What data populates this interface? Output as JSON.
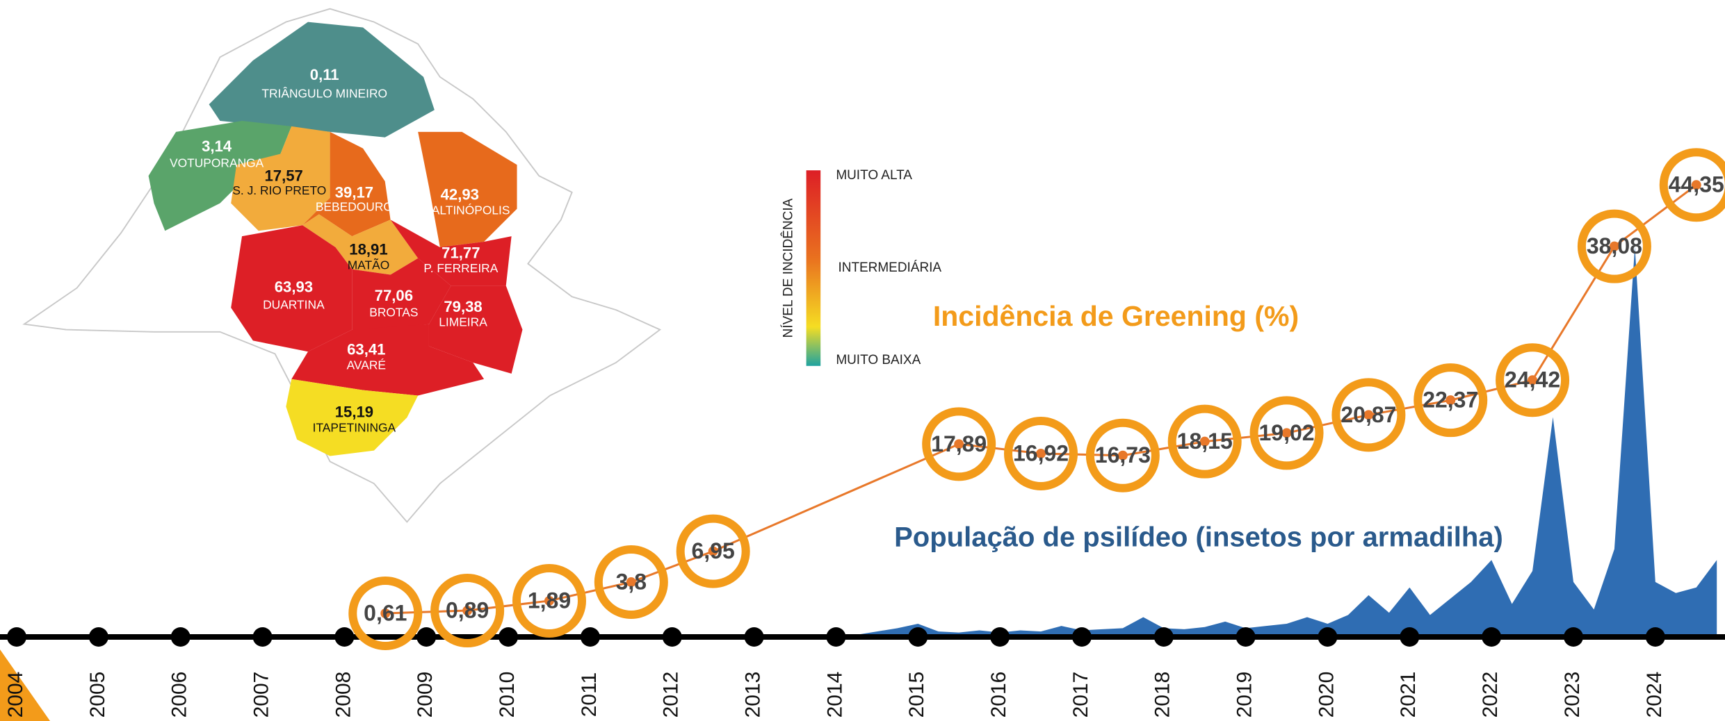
{
  "map": {
    "regions": [
      {
        "value": "0,11",
        "name": "TRIÂNGULO MINEIRO"
      },
      {
        "value": "3,14",
        "name": "VOTUPORANGA"
      },
      {
        "value": "17,57",
        "name": "S. J. RIO PRETO"
      },
      {
        "value": "39,17",
        "name": "BEBEDOURO"
      },
      {
        "value": "42,93",
        "name": "ALTINÓPOLIS"
      },
      {
        "value": "18,91",
        "name": "MATÃO"
      },
      {
        "value": "71,77",
        "name": "P. FERREIRA"
      },
      {
        "value": "63,93",
        "name": "DUARTINA"
      },
      {
        "value": "77,06",
        "name": "BROTAS"
      },
      {
        "value": "79,38",
        "name": "LIMEIRA"
      },
      {
        "value": "63,41",
        "name": "AVARÉ"
      },
      {
        "value": "15,19",
        "name": "ITAPETININGA"
      }
    ],
    "legend": {
      "title": "NÍVEL DE INCIDÊNCIA",
      "high": "MUITO ALTA",
      "mid": "INTERMEDIÁRIA",
      "low": "MUITO BAIXA"
    }
  },
  "chart_data": [
    {
      "type": "line",
      "title": "Incidência de Greening (%)",
      "x": [
        2008.5,
        2009.5,
        2010.5,
        2011.5,
        2012.5,
        2015.5,
        2016.5,
        2017.5,
        2018.5,
        2019.5,
        2020.5,
        2021.5,
        2022.5,
        2023.5,
        2024.5
      ],
      "values": [
        0.61,
        0.89,
        1.89,
        3.8,
        6.95,
        17.89,
        16.92,
        16.73,
        18.15,
        19.02,
        20.87,
        22.37,
        24.42,
        38.08,
        44.35
      ],
      "value_labels": [
        "0,61",
        "0,89",
        "1,89",
        "3,8",
        "6,95",
        "17,89",
        "16,92",
        "16,73",
        "18,15",
        "19,02",
        "20,87",
        "22,37",
        "24,42",
        "38,08",
        "44,35"
      ],
      "color": "#e8782a",
      "marker_color": "#f39b1a",
      "xlim": [
        2004,
        2024.85
      ],
      "ylim": [
        0,
        50
      ],
      "xticks": [
        2004,
        2005,
        2006,
        2007,
        2008,
        2009,
        2010,
        2011,
        2012,
        2013,
        2014,
        2015,
        2016,
        2017,
        2018,
        2019,
        2020,
        2021,
        2022,
        2023,
        2024
      ]
    },
    {
      "type": "area",
      "title": "População de psilídeo (insetos por armadilha)",
      "x": [
        2014,
        2014.25,
        2014.5,
        2014.75,
        2015,
        2015.25,
        2015.5,
        2015.75,
        2016,
        2016.25,
        2016.5,
        2016.75,
        2017,
        2017.25,
        2017.5,
        2017.75,
        2018,
        2018.25,
        2018.5,
        2018.75,
        2019,
        2019.25,
        2019.5,
        2019.75,
        2020,
        2020.25,
        2020.5,
        2020.75,
        2021,
        2021.25,
        2021.5,
        2021.75,
        2022,
        2022.25,
        2022.5,
        2022.75,
        2023,
        2023.25,
        2023.5,
        2023.75,
        2024,
        2024.25,
        2024.5,
        2024.75
      ],
      "values": [
        0,
        2,
        5,
        8,
        12,
        5,
        4,
        6,
        4,
        6,
        5,
        10,
        6,
        7,
        8,
        18,
        8,
        7,
        9,
        14,
        8,
        10,
        12,
        18,
        12,
        20,
        38,
        22,
        45,
        20,
        35,
        50,
        70,
        30,
        60,
        200,
        50,
        25,
        80,
        355,
        50,
        40,
        45,
        70
      ],
      "color": "#2f6db3",
      "xlim": [
        2004,
        2024.85
      ],
      "ylim": [
        0,
        400
      ]
    }
  ]
}
